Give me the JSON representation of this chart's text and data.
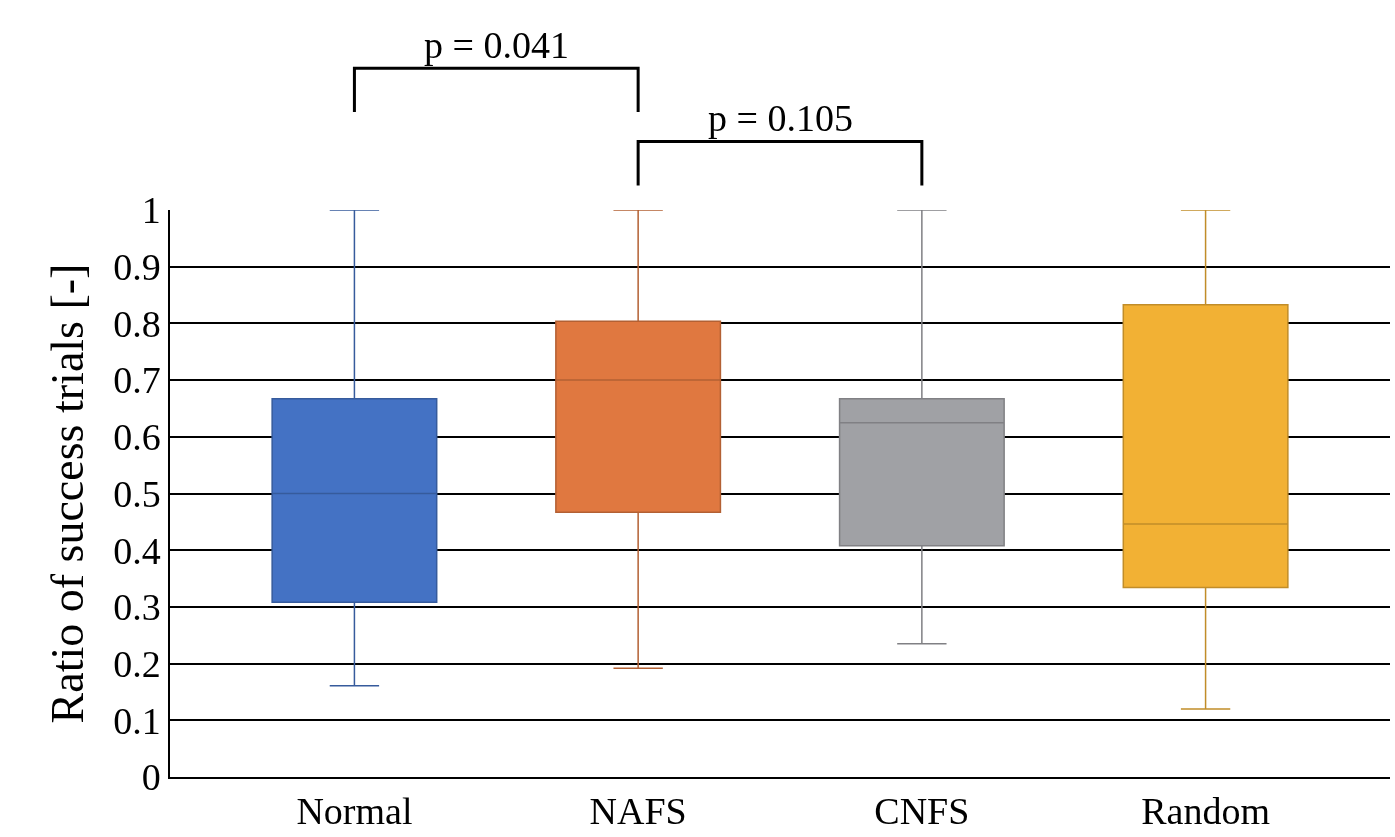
{
  "chart_data": {
    "type": "box",
    "ylabel": "Ratio of success trials [-]",
    "categories": [
      "Normal",
      "NAFS",
      "CNFS",
      "Random"
    ],
    "colors": [
      "#4472c4",
      "#e07840",
      "#a0a1a5",
      "#f2b134"
    ],
    "boxes": [
      {
        "low": 0.161,
        "q1": 0.308,
        "median": 0.5,
        "q3": 0.667,
        "high": 1
      },
      {
        "low": 0.192,
        "q1": 0.467,
        "median": 0.7,
        "q3": 0.804,
        "high": 1
      },
      {
        "low": 0.235,
        "q1": 0.408,
        "median": 0.625,
        "q3": 0.667,
        "high": 1
      },
      {
        "low": 0.12,
        "q1": 0.334,
        "median": 0.446,
        "q3": 0.833,
        "high": 1
      }
    ],
    "ylim": [
      0,
      1
    ],
    "yticks": [
      0,
      0.1,
      0.2,
      0.3,
      0.4,
      0.5,
      0.6,
      0.7,
      0.8,
      0.9,
      1
    ],
    "grid": "y",
    "legend": false,
    "annotations": [
      "p = 0.041",
      "p = 0.105"
    ]
  }
}
